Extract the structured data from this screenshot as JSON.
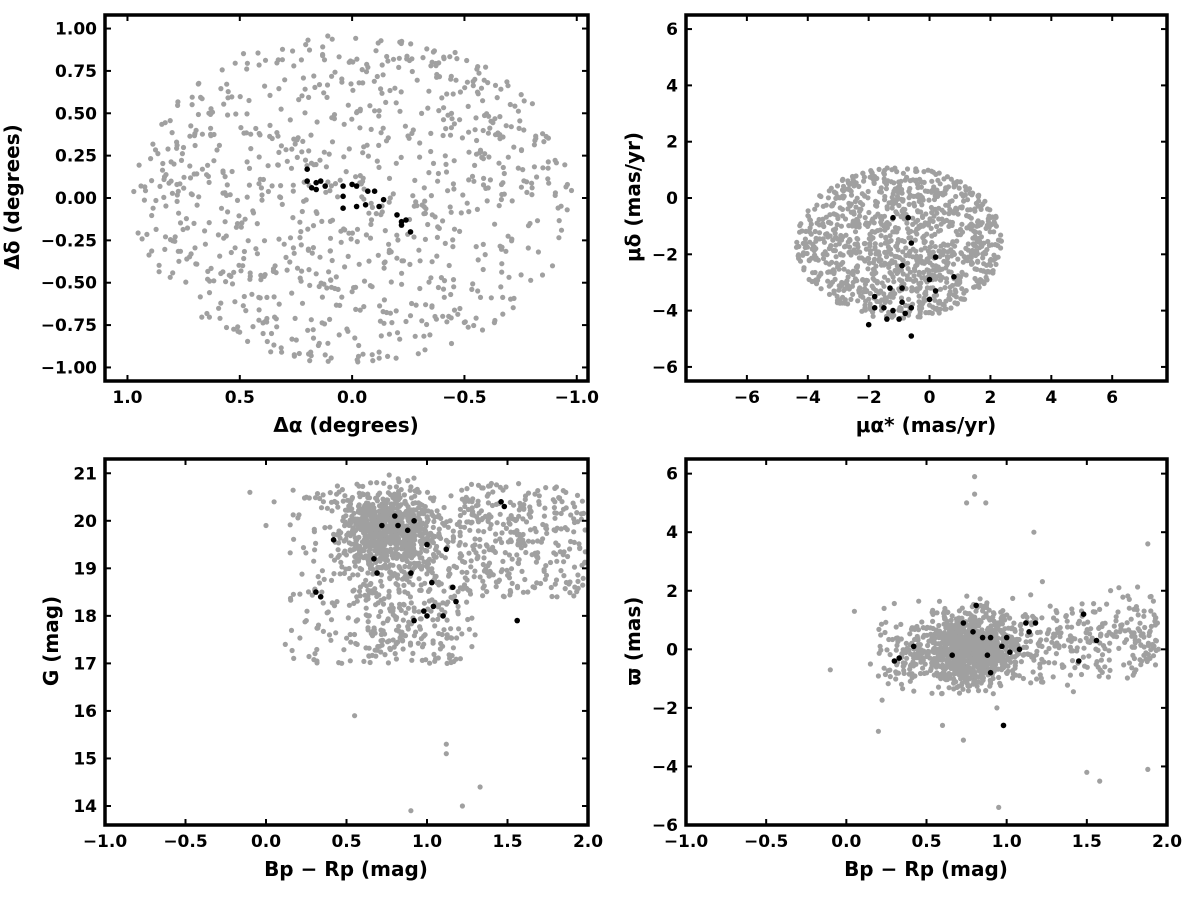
{
  "colors": {
    "field": "#a0a0a0",
    "members": "#000000",
    "frame": "#000000"
  },
  "chart_data": [
    {
      "type": "scatter",
      "xlabel": "Δα (degrees)",
      "ylabel": "Δδ (degrees)",
      "xlim": [
        1.1,
        -1.05
      ],
      "ylim": [
        -1.08,
        1.08
      ],
      "x_reversed": true,
      "xticks": [
        1.0,
        0.5,
        0.0,
        -0.5,
        -1.0
      ],
      "xtick_labels": [
        "1.0",
        "0.5",
        "0.0",
        "−0.5",
        "−1.0"
      ],
      "yticks": [
        -1.0,
        -0.75,
        -0.5,
        -0.25,
        0.0,
        0.25,
        0.5,
        0.75,
        1.0
      ],
      "ytick_labels": [
        "−1.00",
        "−0.75",
        "−0.50",
        "−0.25",
        "0.00",
        "0.25",
        "0.50",
        "0.75",
        "1.00"
      ],
      "field_distribution": {
        "shape": "ellipse",
        "center": [
          0.0,
          0.0
        ],
        "radius": [
          0.98,
          0.98
        ],
        "n": 900
      },
      "members": [
        [
          0.2,
          0.1
        ],
        [
          0.18,
          0.06
        ],
        [
          0.16,
          0.09
        ],
        [
          0.14,
          0.1
        ],
        [
          0.12,
          0.07
        ],
        [
          0.2,
          0.17
        ],
        [
          0.16,
          0.05
        ],
        [
          0.04,
          0.07
        ],
        [
          0.0,
          0.08
        ],
        [
          0.04,
          0.01
        ],
        [
          0.04,
          -0.06
        ],
        [
          -0.02,
          -0.05
        ],
        [
          -0.06,
          -0.04
        ],
        [
          -0.07,
          0.04
        ],
        [
          -0.1,
          0.04
        ],
        [
          -0.12,
          -0.05
        ],
        [
          -0.14,
          -0.01
        ],
        [
          -0.2,
          -0.1
        ],
        [
          -0.22,
          -0.14
        ],
        [
          -0.24,
          -0.13
        ],
        [
          -0.22,
          -0.16
        ],
        [
          -0.26,
          -0.2
        ],
        [
          -0.02,
          0.07
        ]
      ]
    },
    {
      "type": "scatter",
      "xlabel": "μα* (mas/yr)",
      "ylabel": "μδ (mas/yr)",
      "xlim": [
        -8,
        7.8
      ],
      "ylim": [
        -6.5,
        6.5
      ],
      "xticks": [
        -6,
        -4,
        -2,
        0,
        2,
        4,
        6
      ],
      "xtick_labels": [
        "−6",
        "−4",
        "−2",
        "0",
        "2",
        "4",
        "6"
      ],
      "yticks": [
        -6,
        -4,
        -2,
        0,
        2,
        4,
        6
      ],
      "ytick_labels": [
        "−6",
        "−4",
        "−2",
        "0",
        "2",
        "4",
        "6"
      ],
      "field_distribution": {
        "shape": "ellipse",
        "center": [
          -1.0,
          -1.6
        ],
        "radius": [
          3.4,
          2.7
        ],
        "n": 1100
      },
      "members": [
        [
          -1.2,
          -0.7
        ],
        [
          -0.7,
          -0.7
        ],
        [
          -0.6,
          -1.6
        ],
        [
          0.2,
          -2.1
        ],
        [
          -0.9,
          -2.4
        ],
        [
          -1.8,
          -3.5
        ],
        [
          -1.3,
          -3.2
        ],
        [
          -0.9,
          -3.2
        ],
        [
          -1.8,
          -3.9
        ],
        [
          -0.9,
          -3.7
        ],
        [
          -1.2,
          -4.0
        ],
        [
          -0.8,
          -4.1
        ],
        [
          -1.4,
          -4.3
        ],
        [
          -1.0,
          -4.3
        ],
        [
          -2.0,
          -4.5
        ],
        [
          -0.6,
          -4.9
        ],
        [
          0.0,
          -3.6
        ],
        [
          0.2,
          -3.3
        ],
        [
          0.0,
          -2.9
        ],
        [
          0.8,
          -2.8
        ],
        [
          -1.5,
          -3.9
        ],
        [
          -0.6,
          -3.9
        ]
      ]
    },
    {
      "type": "scatter",
      "xlabel": "Bp − Rp (mag)",
      "ylabel": "G (mag)",
      "xlim": [
        -1.0,
        2.0
      ],
      "ylim": [
        13.6,
        21.3
      ],
      "xticks": [
        -1.0,
        -0.5,
        0.0,
        0.5,
        1.0,
        1.5,
        2.0
      ],
      "xtick_labels": [
        "−1.0",
        "−0.5",
        "0.0",
        "0.5",
        "1.0",
        "1.5",
        "2.0"
      ],
      "yticks": [
        14,
        15,
        16,
        17,
        18,
        19,
        20,
        21
      ],
      "ytick_labels": [
        "14",
        "15",
        "16",
        "17",
        "18",
        "19",
        "20",
        "21"
      ],
      "members": [
        [
          0.31,
          18.5
        ],
        [
          0.34,
          18.4
        ],
        [
          0.42,
          19.6
        ],
        [
          0.67,
          19.2
        ],
        [
          0.69,
          18.9
        ],
        [
          0.72,
          19.9
        ],
        [
          0.8,
          20.1
        ],
        [
          0.82,
          19.9
        ],
        [
          0.88,
          19.8
        ],
        [
          0.9,
          18.9
        ],
        [
          0.92,
          20.0
        ],
        [
          0.92,
          17.9
        ],
        [
          0.98,
          18.1
        ],
        [
          1.0,
          19.5
        ],
        [
          1.0,
          18.0
        ],
        [
          1.03,
          18.7
        ],
        [
          1.04,
          18.2
        ],
        [
          1.1,
          18.0
        ],
        [
          1.12,
          19.4
        ],
        [
          1.16,
          18.6
        ],
        [
          1.18,
          18.3
        ],
        [
          1.46,
          20.4
        ],
        [
          1.48,
          20.3
        ],
        [
          1.56,
          17.9
        ]
      ]
    },
    {
      "type": "scatter",
      "xlabel": "Bp − Rp (mag)",
      "ylabel": "ϖ (mas)",
      "xlim": [
        -1.0,
        2.0
      ],
      "ylim": [
        -6.0,
        6.5
      ],
      "xticks": [
        -1.0,
        -0.5,
        0.0,
        0.5,
        1.0,
        1.5,
        2.0
      ],
      "xtick_labels": [
        "−1.0",
        "−0.5",
        "0.0",
        "0.5",
        "1.0",
        "1.5",
        "2.0"
      ],
      "yticks": [
        -6,
        -4,
        -2,
        0,
        2,
        4,
        6
      ],
      "ytick_labels": [
        "−6",
        "−4",
        "−2",
        "0",
        "2",
        "4",
        "6"
      ],
      "members": [
        [
          0.3,
          -0.4
        ],
        [
          0.33,
          -0.3
        ],
        [
          0.42,
          0.1
        ],
        [
          0.66,
          -0.2
        ],
        [
          0.73,
          0.9
        ],
        [
          0.79,
          0.6
        ],
        [
          0.81,
          1.5
        ],
        [
          0.85,
          0.4
        ],
        [
          0.88,
          -0.2
        ],
        [
          0.9,
          0.4
        ],
        [
          0.9,
          -0.8
        ],
        [
          0.97,
          0.1
        ],
        [
          0.98,
          -2.6
        ],
        [
          1.0,
          0.4
        ],
        [
          1.02,
          -0.1
        ],
        [
          1.08,
          0.0
        ],
        [
          1.12,
          0.9
        ],
        [
          1.14,
          0.6
        ],
        [
          1.18,
          0.9
        ],
        [
          1.45,
          -0.4
        ],
        [
          1.48,
          1.2
        ],
        [
          1.56,
          0.3
        ]
      ]
    }
  ]
}
